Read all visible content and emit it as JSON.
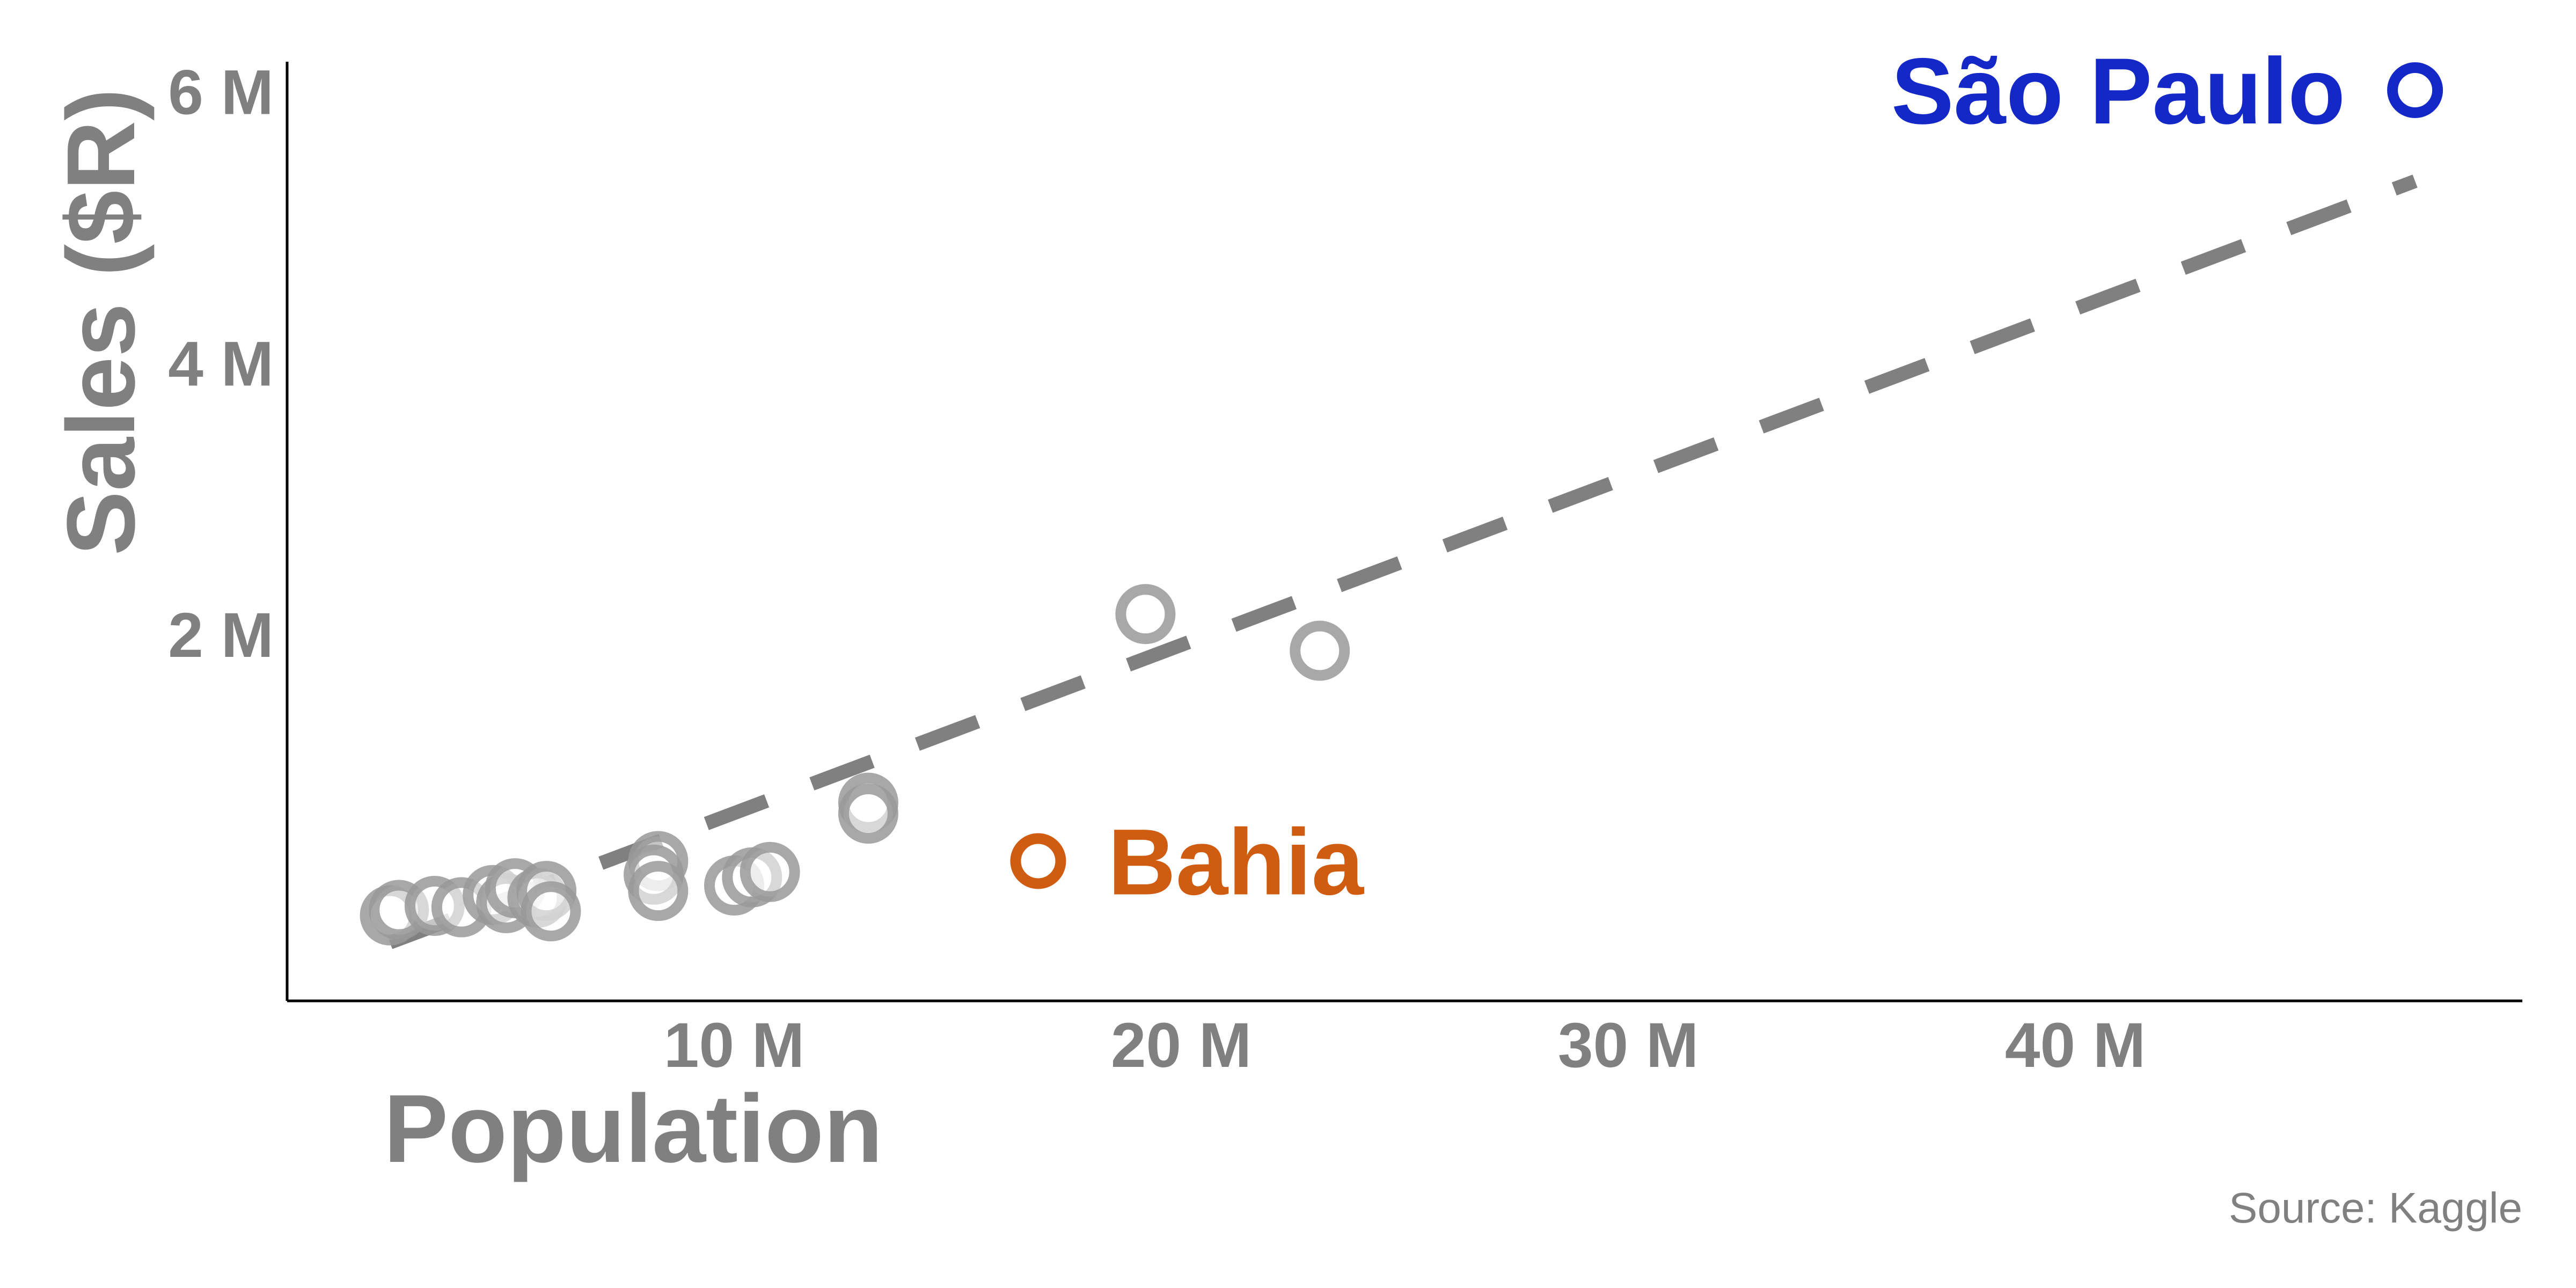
{
  "chart_data": {
    "type": "scatter",
    "title": "",
    "xlabel": "Population",
    "ylabel": "Sales ($R)",
    "source": "Source: Kaggle",
    "xlim": [
      0,
      50000000
    ],
    "ylim": [
      -700000,
      6200000
    ],
    "x_ticks": [
      {
        "value": 10000000,
        "label": "10 M"
      },
      {
        "value": 20000000,
        "label": "20 M"
      },
      {
        "value": 30000000,
        "label": "30 M"
      },
      {
        "value": 40000000,
        "label": "40 M"
      }
    ],
    "y_ticks": [
      {
        "value": 2000000,
        "label": "2 M"
      },
      {
        "value": 4000000,
        "label": "4 M"
      },
      {
        "value": 6000000,
        "label": "6 M"
      }
    ],
    "grid": false,
    "trend_line": {
      "style": "dashed",
      "color": "#808080",
      "from": {
        "x": 2300000,
        "y": -270000
      },
      "to": {
        "x": 47600000,
        "y": 5340000
      }
    },
    "points": [
      {
        "x": 2300000,
        "y": -70000
      },
      {
        "x": 2500000,
        "y": -30000
      },
      {
        "x": 3300000,
        "y": 0
      },
      {
        "x": 3900000,
        "y": -10000
      },
      {
        "x": 4600000,
        "y": 80000
      },
      {
        "x": 4900000,
        "y": 20000
      },
      {
        "x": 5100000,
        "y": 130000
      },
      {
        "x": 5600000,
        "y": 60000
      },
      {
        "x": 5800000,
        "y": 110000
      },
      {
        "x": 5900000,
        "y": -40000
      },
      {
        "x": 8300000,
        "y": 330000
      },
      {
        "x": 8200000,
        "y": 230000
      },
      {
        "x": 8300000,
        "y": 110000
      },
      {
        "x": 10000000,
        "y": 150000
      },
      {
        "x": 10400000,
        "y": 210000
      },
      {
        "x": 10800000,
        "y": 250000
      },
      {
        "x": 13000000,
        "y": 760000
      },
      {
        "x": 13000000,
        "y": 680000
      },
      {
        "x": 19200000,
        "y": 2150000
      },
      {
        "x": 23100000,
        "y": 1880000
      }
    ],
    "highlights": [
      {
        "name": "São Paulo",
        "x": 47600000,
        "y": 6010000,
        "color": "#1428c8",
        "label_side": "left"
      },
      {
        "name": "Bahia",
        "x": 16800000,
        "y": 330000,
        "color": "#d05c12",
        "label_side": "right"
      }
    ],
    "colors": {
      "axis": "#000000",
      "text": "#808080",
      "points": "#999999"
    }
  }
}
